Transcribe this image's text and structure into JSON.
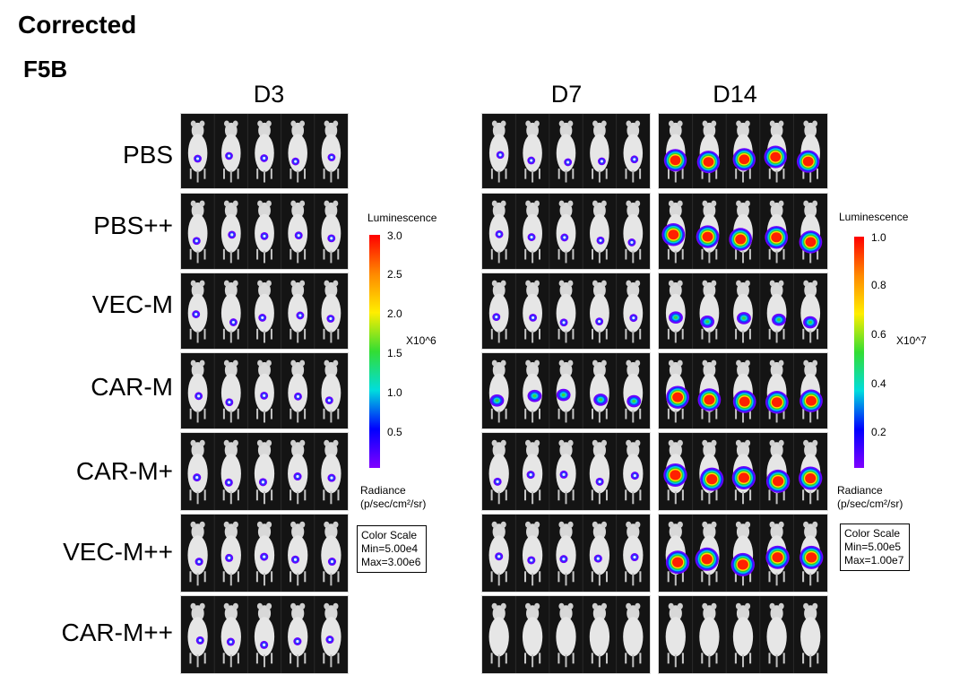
{
  "header": {
    "title": "Corrected",
    "figure_label": "F5B"
  },
  "timepoints": [
    "D3",
    "D7",
    "D14"
  ],
  "groups": [
    "PBS",
    "PBS++",
    "VEC-M",
    "CAR-M",
    "CAR-M+",
    "VEC-M++",
    "CAR-M++"
  ],
  "colorbar_d3": {
    "title": "Luminescence",
    "ticks": [
      "3.0",
      "2.5",
      "2.0",
      "1.5",
      "1.0",
      "0.5"
    ],
    "multiplier": "X10^6",
    "radiance_label": "Radiance",
    "radiance_units": "(p/sec/cm²/sr)",
    "scale_title": "Color Scale",
    "scale_min": "Min=5.00e4",
    "scale_max": "Max=3.00e6"
  },
  "colorbar_d14": {
    "title": "Luminescence",
    "ticks": [
      "1.0",
      "0.8",
      "0.6",
      "0.4",
      "0.2"
    ],
    "multiplier": "X10^7",
    "radiance_label": "Radiance",
    "radiance_units": "(p/sec/cm²/sr)",
    "scale_title": "Color Scale",
    "scale_min": "Min=5.00e5",
    "scale_max": "Max=1.00e7"
  }
}
